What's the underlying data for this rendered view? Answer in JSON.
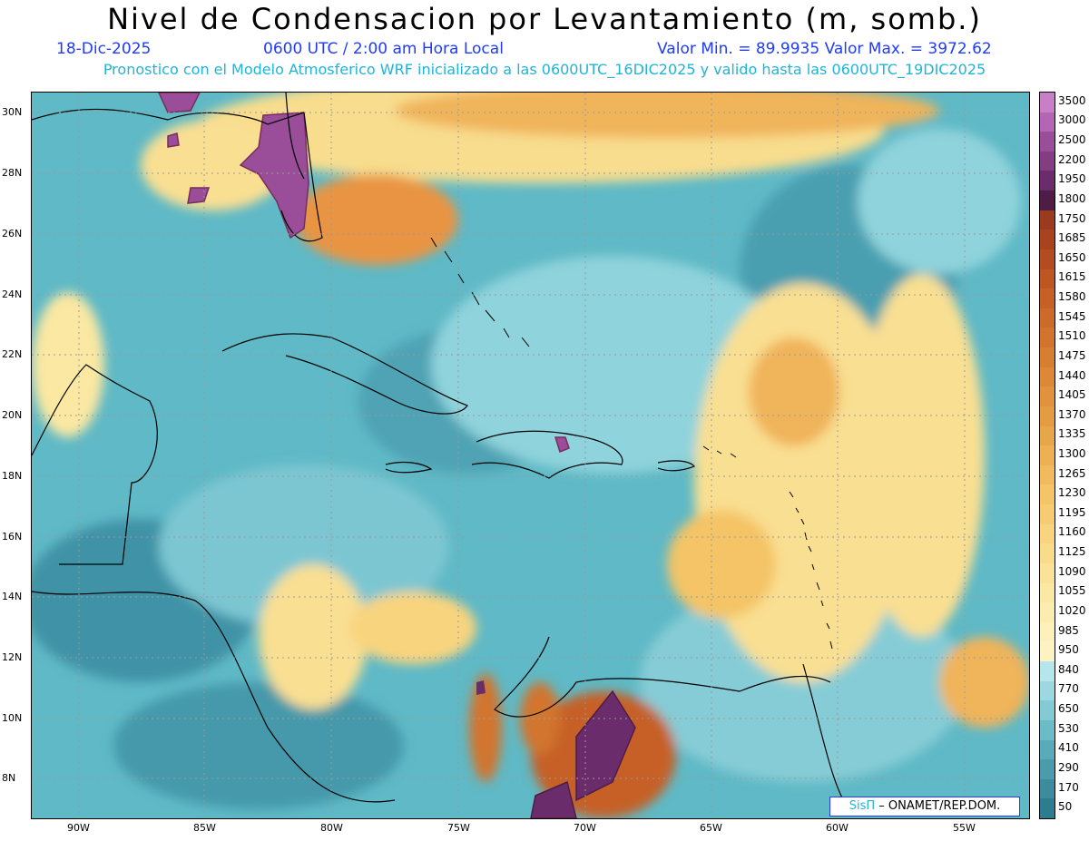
{
  "header": {
    "title": "Nivel de Condensacion por Levantamiento (m, somb.)",
    "date": "18-Dic-2025",
    "time": "0600 UTC / 2:00 am Hora Local",
    "minmax": "Valor Min. = 89.9935   Valor Max. = 3972.62",
    "forecast": "Pronostico con el Modelo Atmosferico WRF inicializado a las 0600UTC_16DIC2025 y valido hasta las  0600UTC_19DIC2025"
  },
  "map": {
    "lat_labels": [
      "30N",
      "28N",
      "26N",
      "24N",
      "22N",
      "20N",
      "18N",
      "16N",
      "14N",
      "12N",
      "10N",
      "8N"
    ],
    "lon_labels": [
      "90W",
      "85W",
      "80W",
      "75W",
      "70W",
      "65W",
      "60W",
      "55W"
    ]
  },
  "colorbar": {
    "labels": [
      "3500",
      "3000",
      "2500",
      "2200",
      "1950",
      "1800",
      "1750",
      "1685",
      "1650",
      "1615",
      "1580",
      "1545",
      "1510",
      "1475",
      "1440",
      "1405",
      "1370",
      "1335",
      "1300",
      "1265",
      "1230",
      "1195",
      "1160",
      "1125",
      "1090",
      "1055",
      "1020",
      "985",
      "950",
      "840",
      "770",
      "650",
      "530",
      "410",
      "290",
      "170",
      "50"
    ],
    "colors": [
      "#c87fc8",
      "#b466b4",
      "#9a4e9a",
      "#833e83",
      "#6a2c6a",
      "#4f1c45",
      "#9a3a1e",
      "#a8431e",
      "#b34d20",
      "#be5622",
      "#c66026",
      "#cc6a2a",
      "#d2742e",
      "#d87e32",
      "#dc8836",
      "#e0923c",
      "#e49c42",
      "#e8a64a",
      "#eeb052",
      "#f1ba5c",
      "#f4c466",
      "#f6cc72",
      "#f8d47e",
      "#f9dc8a",
      "#fae296",
      "#fbe8a2",
      "#fcecae",
      "#fdf0ba",
      "#fdf3c2",
      "#b4e6ec",
      "#9cd8e0",
      "#84cad4",
      "#6cbcc8",
      "#58acba",
      "#4a9cac",
      "#3c8c9e",
      "#2e7c90"
    ]
  },
  "credit": {
    "sis": "SisΠ",
    "org": " – ONAMET/REP.DOM."
  }
}
